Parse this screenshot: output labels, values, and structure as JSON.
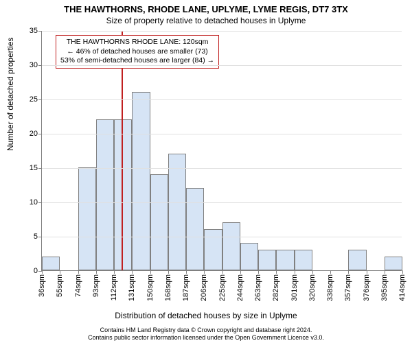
{
  "title_line1": "THE HAWTHORNS, RHODE LANE, UPLYME, LYME REGIS, DT7 3TX",
  "title_line2": "Size of property relative to detached houses in Uplyme",
  "ylabel": "Number of detached properties",
  "xlabel": "Distribution of detached houses by size in Uplyme",
  "footer_line1": "Contains HM Land Registry data © Crown copyright and database right 2024.",
  "footer_line2": "Contains public sector information licensed under the Open Government Licence v3.0.",
  "info_box": {
    "line1": "THE HAWTHORNS RHODE LANE: 120sqm",
    "line2": "← 46% of detached houses are smaller (73)",
    "line3": "53% of semi-detached houses are larger (84) →"
  },
  "chart": {
    "type": "histogram",
    "ylim": [
      0,
      35
    ],
    "yticks": [
      0,
      5,
      10,
      15,
      20,
      25,
      30,
      35
    ],
    "xticks_labels": [
      "36sqm",
      "55sqm",
      "74sqm",
      "93sqm",
      "112sqm",
      "131sqm",
      "150sqm",
      "168sqm",
      "187sqm",
      "206sqm",
      "225sqm",
      "244sqm",
      "263sqm",
      "282sqm",
      "301sqm",
      "320sqm",
      "338sqm",
      "357sqm",
      "376sqm",
      "395sqm",
      "414sqm"
    ],
    "values": [
      2,
      0,
      15,
      22,
      22,
      26,
      14,
      17,
      12,
      6,
      7,
      4,
      3,
      3,
      3,
      0,
      0,
      3,
      0,
      2
    ],
    "marker_bin_index": 4,
    "marker_fraction_in_bin": 0.42,
    "bar_fill": "#d6e4f5",
    "bar_border": "#808080",
    "grid_color": "#e0e0e0",
    "marker_color": "#c02020",
    "background": "#ffffff",
    "tick_fontsize": 11,
    "label_fontsize": 12,
    "title_fontsize": 13
  }
}
